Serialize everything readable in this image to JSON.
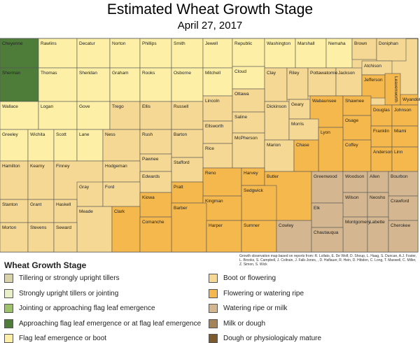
{
  "title": "Estimated Wheat Growth Stage",
  "subtitle": "April 27, 2017",
  "map": {
    "counties": [
      {
        "name": "Cheyenne",
        "color": "#4e7d3a"
      },
      {
        "name": "Rawlins",
        "color": "#fdf0a6"
      },
      {
        "name": "Decatur",
        "color": "#fdf0a6"
      },
      {
        "name": "Norton",
        "color": "#fdf0a6"
      },
      {
        "name": "Phillips",
        "color": "#fdf0a6"
      },
      {
        "name": "Smith",
        "color": "#fdf0a6"
      },
      {
        "name": "Jewell",
        "color": "#fdf0a6"
      },
      {
        "name": "Republic",
        "color": "#fdf0a6"
      },
      {
        "name": "Washington",
        "color": "#fdf0a6"
      },
      {
        "name": "Marshall",
        "color": "#fdf0a6"
      },
      {
        "name": "Nemaha",
        "color": "#fdf0a6"
      },
      {
        "name": "Brown",
        "color": "#f5d893"
      },
      {
        "name": "Doniphan",
        "color": "#f5d893"
      },
      {
        "name": "Sherman",
        "color": "#4e7d3a"
      },
      {
        "name": "Thomas",
        "color": "#fdf0a6"
      },
      {
        "name": "Sheridan",
        "color": "#fdf0a6"
      },
      {
        "name": "Graham",
        "color": "#fdf0a6"
      },
      {
        "name": "Rooks",
        "color": "#fdf0a6"
      },
      {
        "name": "Osborne",
        "color": "#fdf0a6"
      },
      {
        "name": "Mitchell",
        "color": "#fdf0a6"
      },
      {
        "name": "Cloud",
        "color": "#fdf0a6"
      },
      {
        "name": "Clay",
        "color": "#f5d893"
      },
      {
        "name": "Riley",
        "color": "#f5d893"
      },
      {
        "name": "Pottawatomie",
        "color": "#f5d893"
      },
      {
        "name": "Jackson",
        "color": "#f5d893"
      },
      {
        "name": "Atchison",
        "color": "#f5d893"
      },
      {
        "name": "Jefferson",
        "color": "#f5b84c"
      },
      {
        "name": "Leavenworth",
        "color": "#f5b84c"
      },
      {
        "name": "Wyandotte",
        "color": "#f5b84c"
      },
      {
        "name": "Wallace",
        "color": "#fdf0a6"
      },
      {
        "name": "Logan",
        "color": "#fdf0a6"
      },
      {
        "name": "Gove",
        "color": "#fdf0a6"
      },
      {
        "name": "Trego",
        "color": "#f5d893"
      },
      {
        "name": "Ellis",
        "color": "#f5d893"
      },
      {
        "name": "Russell",
        "color": "#f5d893"
      },
      {
        "name": "Lincoln",
        "color": "#f5d893"
      },
      {
        "name": "Ottawa",
        "color": "#f5d893"
      },
      {
        "name": "Dickinson",
        "color": "#f5d893"
      },
      {
        "name": "Geary",
        "color": "#f5d893"
      },
      {
        "name": "Wabaunsee",
        "color": "#f5b84c"
      },
      {
        "name": "Shawnee",
        "color": "#f5b84c"
      },
      {
        "name": "Douglas",
        "color": "#f5b84c"
      },
      {
        "name": "Johnson",
        "color": "#f5b84c"
      },
      {
        "name": "Saline",
        "color": "#f5d893"
      },
      {
        "name": "Ellsworth",
        "color": "#f5d893"
      },
      {
        "name": "Morris",
        "color": "#f5d893"
      },
      {
        "name": "Osage",
        "color": "#f5b84c"
      },
      {
        "name": "Franklin",
        "color": "#f5b84c"
      },
      {
        "name": "Miami",
        "color": "#f5b84c"
      },
      {
        "name": "Greeley",
        "color": "#fdf0a6"
      },
      {
        "name": "Wichita",
        "color": "#fdf0a6"
      },
      {
        "name": "Scott",
        "color": "#fdf0a6"
      },
      {
        "name": "Lane",
        "color": "#fdf0a6"
      },
      {
        "name": "Ness",
        "color": "#f5d893"
      },
      {
        "name": "Rush",
        "color": "#f5d893"
      },
      {
        "name": "Barton",
        "color": "#f5d893"
      },
      {
        "name": "Lyon",
        "color": "#f5b84c"
      },
      {
        "name": "Rice",
        "color": "#f5d893"
      },
      {
        "name": "McPherson",
        "color": "#f5d893"
      },
      {
        "name": "Marion",
        "color": "#f5d893"
      },
      {
        "name": "Chase",
        "color": "#f5b84c"
      },
      {
        "name": "Coffey",
        "color": "#f5b84c"
      },
      {
        "name": "Anderson",
        "color": "#f5b84c"
      },
      {
        "name": "Linn",
        "color": "#f5b84c"
      },
      {
        "name": "Pawnee",
        "color": "#f5d893"
      },
      {
        "name": "Stafford",
        "color": "#f5d893"
      },
      {
        "name": "Hamilton",
        "color": "#f5d893"
      },
      {
        "name": "Kearny",
        "color": "#f5d893"
      },
      {
        "name": "Finney",
        "color": "#f5d893"
      },
      {
        "name": "Hodgeman",
        "color": "#f5d893"
      },
      {
        "name": "Reno",
        "color": "#f5b84c"
      },
      {
        "name": "Harvey",
        "color": "#f5b84c"
      },
      {
        "name": "Edwards",
        "color": "#f5d893"
      },
      {
        "name": "Butler",
        "color": "#f5b84c"
      },
      {
        "name": "Greenwood",
        "color": "#d4b791"
      },
      {
        "name": "Woodson",
        "color": "#d4b791"
      },
      {
        "name": "Allen",
        "color": "#d4b791"
      },
      {
        "name": "Bourbon",
        "color": "#d4b791"
      },
      {
        "name": "Gray",
        "color": "#f5d893"
      },
      {
        "name": "Ford",
        "color": "#f5d893"
      },
      {
        "name": "Pratt",
        "color": "#f5b84c"
      },
      {
        "name": "Sedgwick",
        "color": "#f5b84c"
      },
      {
        "name": "Kiowa",
        "color": "#f5b84c"
      },
      {
        "name": "Wilson",
        "color": "#d4b791"
      },
      {
        "name": "Neosho",
        "color": "#d4b791"
      },
      {
        "name": "Kingman",
        "color": "#f5b84c"
      },
      {
        "name": "Crawford",
        "color": "#d4b791"
      },
      {
        "name": "Stanton",
        "color": "#f5d893"
      },
      {
        "name": "Grant",
        "color": "#f5d893"
      },
      {
        "name": "Haskell",
        "color": "#f5d893"
      },
      {
        "name": "Barber",
        "color": "#f5b84c"
      },
      {
        "name": "Elk",
        "color": "#d4b791"
      },
      {
        "name": "Meade",
        "color": "#f5d893"
      },
      {
        "name": "Clark",
        "color": "#f5b84c"
      },
      {
        "name": "Comanche",
        "color": "#f5b84c"
      },
      {
        "name": "Montgomery",
        "color": "#d4b791"
      },
      {
        "name": "Labette",
        "color": "#d4b791"
      },
      {
        "name": "Harper",
        "color": "#f5b84c"
      },
      {
        "name": "Sumner",
        "color": "#f5b84c"
      },
      {
        "name": "Cowley",
        "color": "#d4b791"
      },
      {
        "name": "Cherokee",
        "color": "#d4b791"
      },
      {
        "name": "Morton",
        "color": "#f5d893"
      },
      {
        "name": "Stevens",
        "color": "#f5d893"
      },
      {
        "name": "Seward",
        "color": "#f5d893"
      },
      {
        "name": "Chautauqua",
        "color": "#d4b791"
      }
    ]
  },
  "footnote": "Growth observation map based on reports from: R. Lollato, E. De Wolf, D. Shoup, L. Haag, S. Duncan, A.J. Foster, L. Brooks, S. Campbell, J. Coltrain, J. Falk-Jones, , D. Haflauer, R. Hein, D. Hibdon, C. Long, T. Maxwell, C. Miller, Z. Simon, S. Wick",
  "legend": {
    "title": "Wheat Growth Stage",
    "items": [
      {
        "label": "Tillering or strongly upright tillers",
        "color": "#d8d3a8"
      },
      {
        "label": "Strongly upright tillers or jointing",
        "color": "#e9efc6"
      },
      {
        "label": "Jointing or approaching flag leaf emergence",
        "color": "#9dc26a"
      },
      {
        "label": "Approaching flag leaf emergence or at flag leaf emergence",
        "color": "#4e7d3a"
      },
      {
        "label": "Flag leaf emergence or boot",
        "color": "#fdf0a6"
      },
      {
        "label": "Boot or flowering",
        "color": "#f5d893"
      },
      {
        "label": "Flowering or watering ripe",
        "color": "#f5b84c"
      },
      {
        "label": "Watering ripe or milk",
        "color": "#d4b791"
      },
      {
        "label": "Milk or dough",
        "color": "#a6845a"
      },
      {
        "label": "Dough or physiologicaly mature",
        "color": "#7d5a2e"
      }
    ]
  }
}
